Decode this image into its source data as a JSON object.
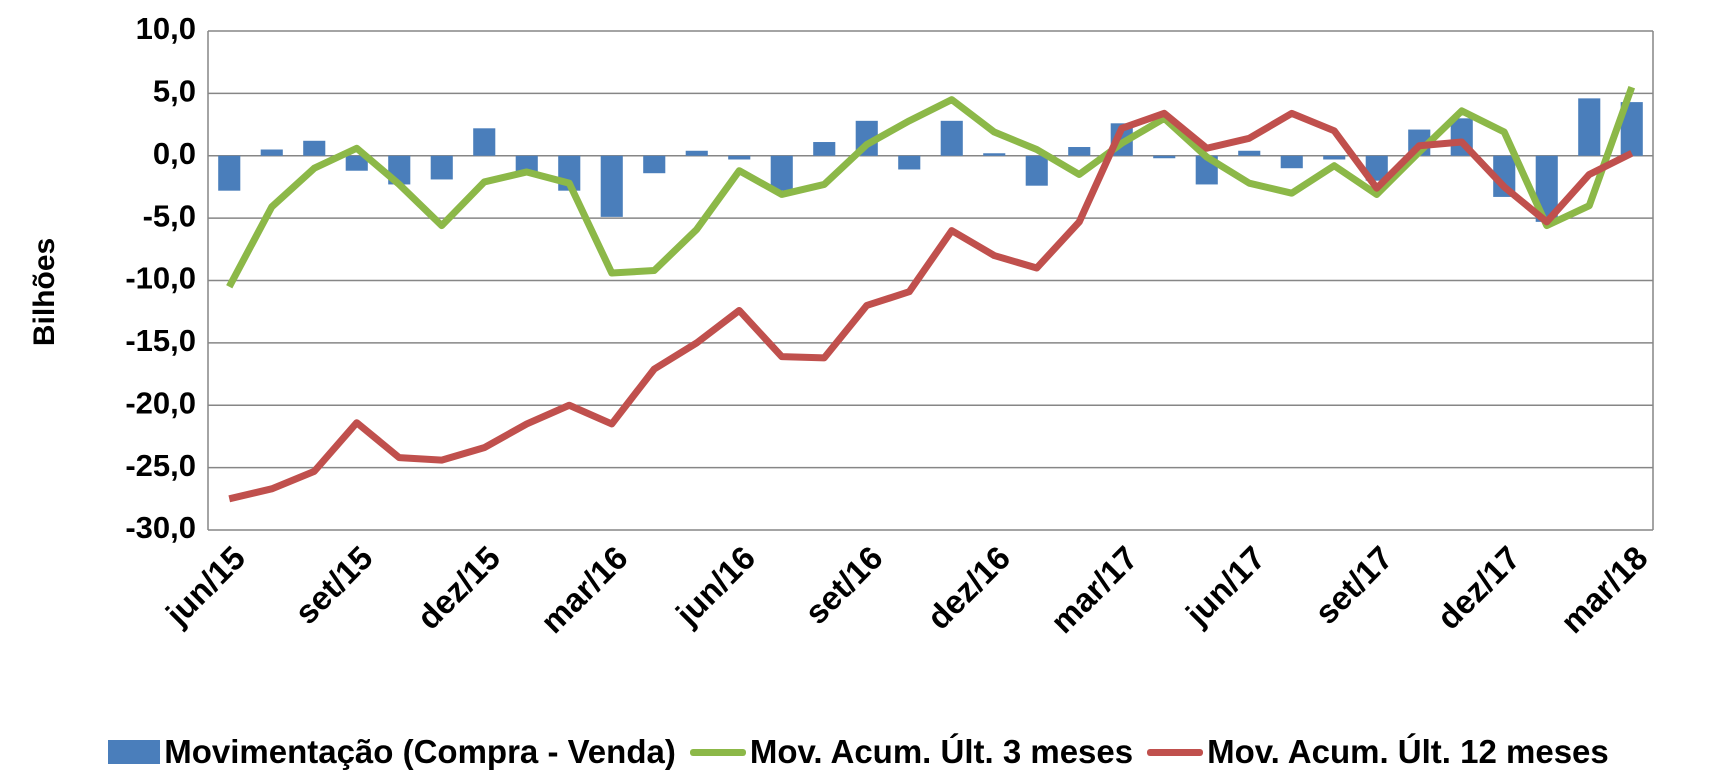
{
  "chart_data": {
    "type": "bar-line",
    "y_label": "Bilhões",
    "categories": [
      "jun/15",
      null,
      null,
      "set/15",
      null,
      null,
      "dez/15",
      null,
      null,
      "mar/16",
      null,
      null,
      "jun/16",
      null,
      null,
      "set/16",
      null,
      null,
      "dez/16",
      null,
      null,
      "mar/17",
      null,
      null,
      "jun/17",
      null,
      null,
      "set/17",
      null,
      null,
      "dez/17",
      null,
      null,
      "mar/18"
    ],
    "series": [
      {
        "name": "Movimentação (Compra - Venda)",
        "type": "bar",
        "color": "#4a7ebb",
        "values": [
          -2.8,
          0.5,
          1.2,
          -1.2,
          -2.3,
          -1.9,
          2.2,
          -1.3,
          -2.8,
          -4.9,
          -1.4,
          0.4,
          -0.3,
          -2.8,
          1.1,
          2.8,
          -1.1,
          2.8,
          0.2,
          -2.4,
          0.7,
          2.6,
          -0.2,
          -2.3,
          0.4,
          -1.0,
          -0.3,
          -2.0,
          2.1,
          3.0,
          -3.3,
          -5.3,
          4.6,
          4.3
        ]
      },
      {
        "name": "Mov. Acum. Últ. 3 meses",
        "type": "line",
        "color": "#8cb848",
        "values": [
          -10.5,
          -4.1,
          -1.0,
          0.6,
          -2.3,
          -5.6,
          -2.1,
          -1.3,
          -2.2,
          -9.4,
          -9.2,
          -5.9,
          -1.2,
          -3.1,
          -2.3,
          0.9,
          2.8,
          4.5,
          1.9,
          0.5,
          -1.5,
          1.0,
          3.0,
          -0.1,
          -2.2,
          -3.0,
          -0.8,
          -3.1,
          0.3,
          3.6,
          1.9,
          -5.6,
          -4.0,
          5.5
        ]
      },
      {
        "name": "Mov. Acum. Últ. 12 meses",
        "type": "line",
        "color": "#c0504d",
        "values": [
          -27.5,
          -26.7,
          -25.3,
          -21.4,
          -24.2,
          -24.4,
          -23.4,
          -21.5,
          -20.0,
          -21.5,
          -17.1,
          -15.0,
          -12.4,
          -16.1,
          -16.2,
          -12.0,
          -10.9,
          -6.0,
          -8.0,
          -9.0,
          -5.3,
          2.2,
          3.4,
          0.6,
          1.4,
          3.4,
          2.0,
          -2.6,
          0.8,
          1.1,
          -2.5,
          -5.3,
          -1.5,
          0.2
        ]
      }
    ],
    "ylim": [
      -30,
      10
    ],
    "yticks": [
      {
        "value": -30,
        "label": "-30,0"
      },
      {
        "value": -25,
        "label": "-25,0"
      },
      {
        "value": -20,
        "label": "-20,0"
      },
      {
        "value": -15,
        "label": "-15,0"
      },
      {
        "value": -10,
        "label": "-10,0"
      },
      {
        "value": -5,
        "label": "-5,0"
      },
      {
        "value": 0,
        "label": "0,0"
      },
      {
        "value": 5,
        "label": "5,0"
      },
      {
        "value": 10,
        "label": "10,0"
      }
    ],
    "grid": true
  }
}
